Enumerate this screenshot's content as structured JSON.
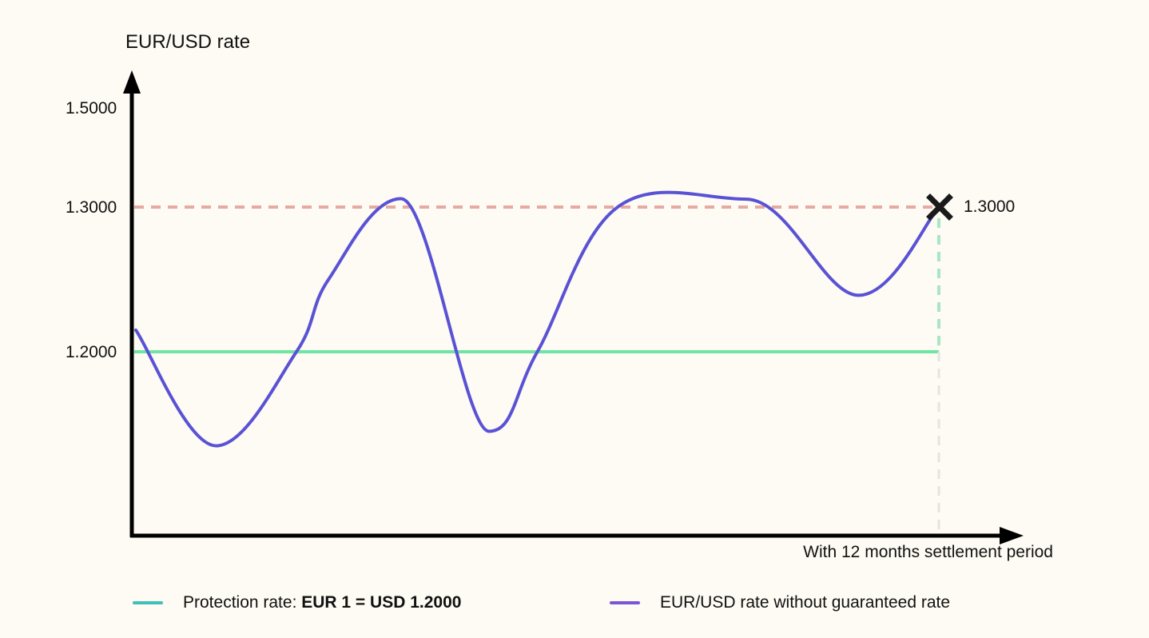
{
  "chart_data": {
    "type": "line",
    "ylabel": "EUR/USD rate",
    "xlabel": "With 12 months settlement period",
    "y_ticks": [
      "1.5000",
      "1.3000",
      "1.2000"
    ],
    "series": [
      {
        "name": "EUR/USD rate without guaranteed rate",
        "color": "#5a52d5",
        "x": [
          0,
          0.1,
          0.2,
          0.24,
          0.33,
          0.44,
          0.5,
          0.6,
          0.76,
          0.9,
          1.0
        ],
        "values": [
          1.215,
          1.135,
          1.2,
          1.25,
          1.317,
          1.145,
          1.2,
          1.3,
          1.316,
          1.239,
          1.3
        ]
      },
      {
        "name": "Protection rate",
        "color": "#6ee5a4",
        "x": [
          0,
          1
        ],
        "values": [
          1.2,
          1.2
        ]
      }
    ],
    "reference_lines": [
      {
        "value": 1.3,
        "color": "#e6aaa0",
        "style": "dashed"
      }
    ],
    "end_marker": {
      "label": "1.3000",
      "value": 1.3,
      "symbol": "x"
    },
    "colors": {
      "axis": "#000000",
      "protection": "#6ee5a4",
      "rate_line": "#5a52d5",
      "reference": "#e6aaa0",
      "vertical_upper": "#a8e6c4",
      "vertical_lower": "#e5e5df",
      "legend_protection": "#3ec0b8",
      "legend_rate": "#7a55d8"
    }
  },
  "legend": {
    "protection_prefix": "Protection rate: ",
    "protection_value": "EUR 1 = USD 1.2000",
    "rate_label": "EUR/USD rate without guaranteed rate"
  }
}
